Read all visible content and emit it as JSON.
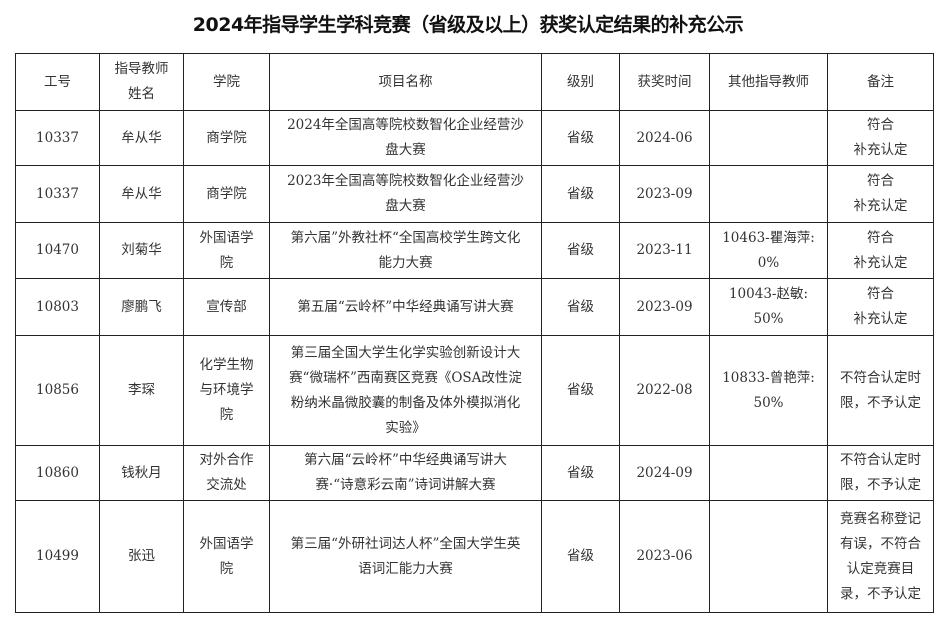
{
  "title": "2024年指导学生学科竞赛（省级及以上）获奖认定结果的补充公示",
  "headers": [
    "工号",
    "指导教师\n姓名",
    "学院",
    "项目名称",
    "级别",
    "获奖时间",
    "其他指导教师",
    "备注"
  ],
  "rows": [
    [
      "10337",
      "牟从华",
      "商学院",
      "2024年全国高等院校数智化企业经营沙\n盘大赛",
      "省级",
      "2024-06",
      "",
      "符合\n补充认定"
    ],
    [
      "10337",
      "牟从华",
      "商学院",
      "2023年全国高等院校数智化企业经营沙\n盘大赛",
      "省级",
      "2023-09",
      "",
      "符合\n补充认定"
    ],
    [
      "10470",
      "刘菊华",
      "外国语学\n院",
      "第六届”外教社杯“全国高校学生跨文化\n能力大赛",
      "省级",
      "2023-11",
      "10463-瞿海萍:\n0%",
      "符合\n补充认定"
    ],
    [
      "10803",
      "廖鹏飞",
      "宣传部",
      "第五届“云岭杯”中华经典诵写讲大赛",
      "省级",
      "2023-09",
      "10043-赵敏:\n50%",
      "符合\n补充认定"
    ],
    [
      "10856",
      "李琛",
      "化学生物\n与环境学\n院",
      "第三届全国大学生化学实验创新设计大\n赛“微瑞杯”西南赛区竞赛《OSA改性淀\n粉纳米晶微胶囊的制备及体外模拟消化\n实验》",
      "省级",
      "2022-08",
      "10833-曾艳萍:\n50%",
      "不符合认定时\n限，不予认定"
    ],
    [
      "10860",
      "钱秋月",
      "对外合作\n交流处",
      "第六届“云岭杯”中华经典诵写讲大\n赛·“诗意彩云南”诗词讲解大赛",
      "省级",
      "2024-09",
      "",
      "不符合认定时\n限，不予认定"
    ],
    [
      "10499",
      "张迅",
      "外国语学\n院",
      "第三届“外研社词达人杯”全国大学生英\n语词汇能力大赛",
      "省级",
      "2023-06",
      "",
      "竞赛名称登记\n有误，不符合\n认定竞赛目\n录，不予认定"
    ]
  ]
}
